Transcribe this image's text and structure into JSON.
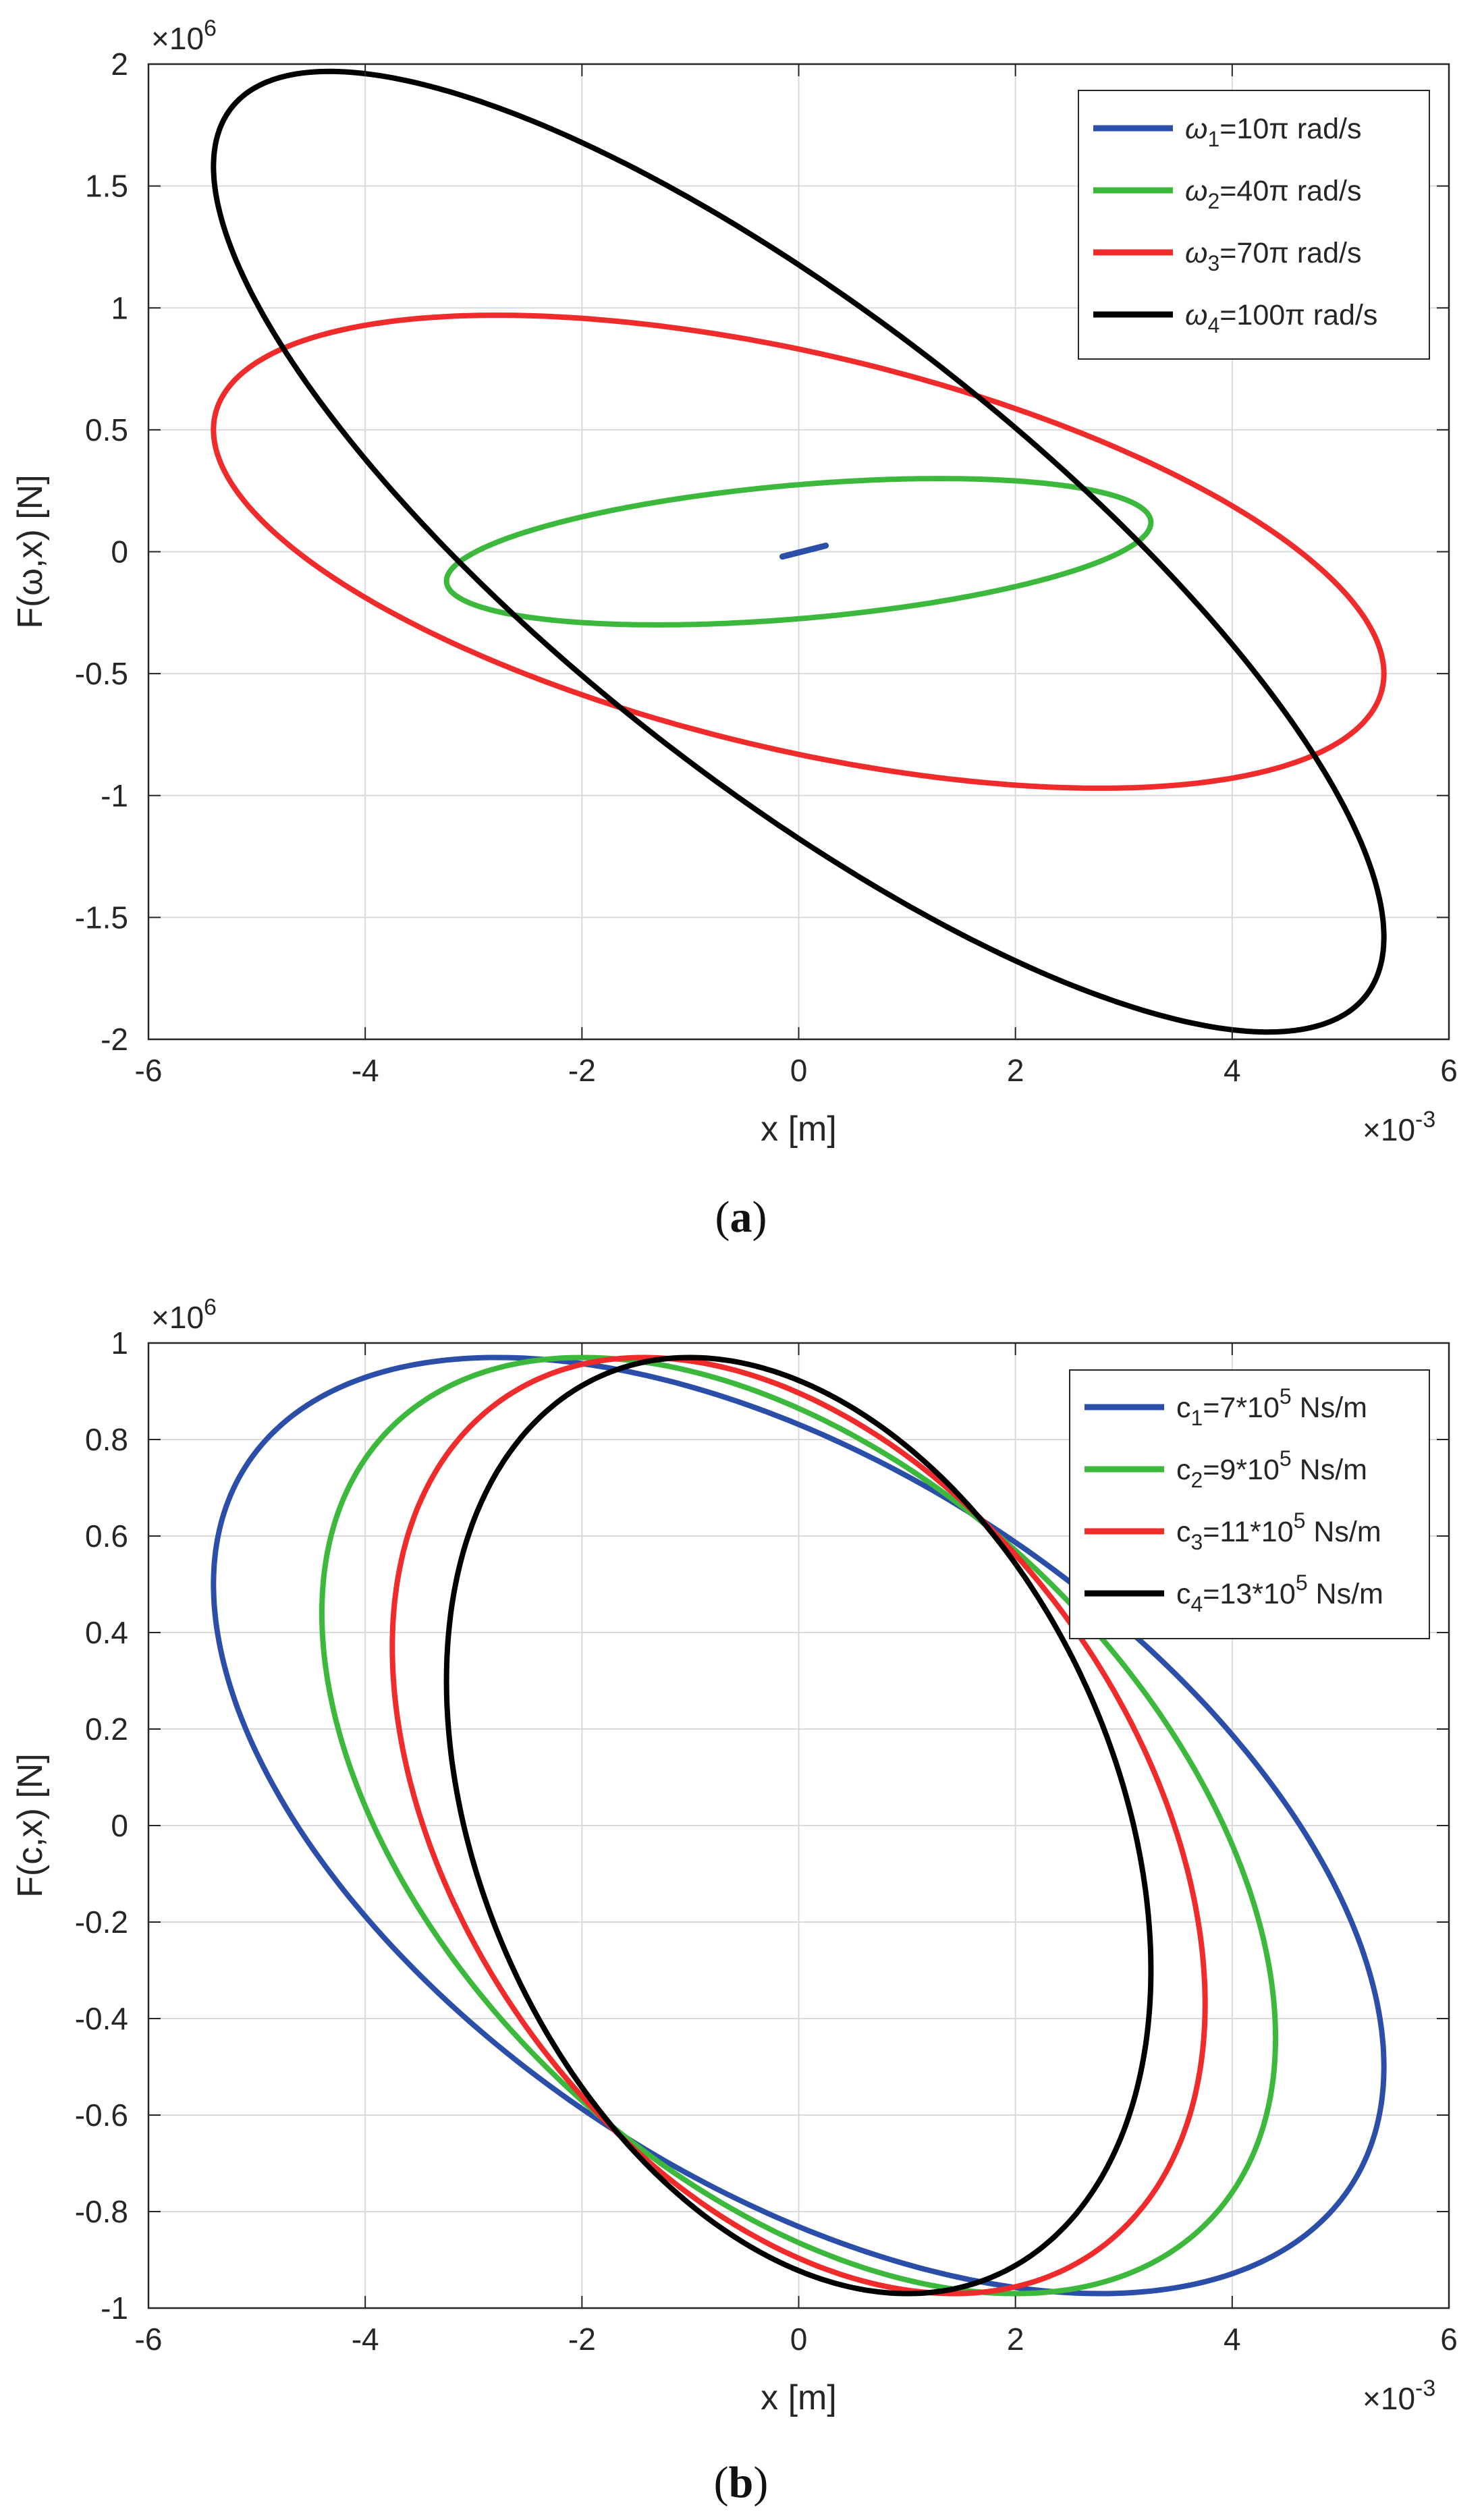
{
  "chart_data": [
    {
      "type": "line",
      "caption": {
        "open": "(",
        "letter": "a",
        "close": ")"
      },
      "xlabel": "x [m]",
      "ylabel": "F(ω,x) [N]",
      "x_multiplier": "×10-3",
      "x_multiplier_parts": {
        "base": "×10",
        "exp": "-3"
      },
      "y_multiplier": "×10^6",
      "y_multiplier_parts": {
        "base": "×10",
        "exp": "6"
      },
      "xlim": [
        -6,
        6
      ],
      "ylim": [
        -2,
        2
      ],
      "xticks": [
        -6,
        -4,
        -2,
        0,
        2,
        4,
        6
      ],
      "xtick_labels": [
        "-6",
        "-4",
        "-2",
        "0",
        "2",
        "4",
        "6"
      ],
      "yticks": [
        -2,
        -1.5,
        -1,
        -0.5,
        0,
        0.5,
        1,
        1.5,
        2
      ],
      "ytick_labels": [
        "-2",
        "-1.5",
        "-1",
        "-0.5",
        "0",
        "0.5",
        "1",
        "1.5",
        "2"
      ],
      "grid": true,
      "legend_position": "top-right",
      "series": [
        {
          "name": "ω1=10π rad/s",
          "label": {
            "sym": "ω",
            "sub": "1",
            "rest": "=10π rad/s"
          },
          "color": "#2b4fa8",
          "shape": "segment",
          "x": [
            -0.15,
            0.25
          ],
          "y": [
            -0.02,
            0.025
          ]
        },
        {
          "name": "ω2=40π rad/s",
          "label": {
            "sym": "ω",
            "sub": "2",
            "rest": "=40π rad/s"
          },
          "color": "#3cb93c",
          "shape": "loop",
          "x_amp": 3.25,
          "y_amp": 0.3,
          "x_at_ymax": 1.2,
          "y_at_xmax": 0.12
        },
        {
          "name": "ω3=70π rad/s",
          "label": {
            "sym": "ω",
            "sub": "3",
            "rest": "=70π rad/s"
          },
          "color": "#ef2b2b",
          "shape": "loop",
          "x_amp": 5.4,
          "y_amp": 0.97,
          "x_at_ymax": -2.9,
          "y_at_xmax": -0.5
        },
        {
          "name": "ω4=100π rad/s",
          "label": {
            "sym": "ω",
            "sub": "4",
            "rest": "=100π rad/s"
          },
          "color": "#000000",
          "shape": "loop",
          "x_amp": 5.4,
          "y_amp": 1.97,
          "x_at_ymax": -4.3,
          "y_at_xmax": -1.58
        }
      ]
    },
    {
      "type": "line",
      "caption": {
        "open": "(",
        "letter": "b",
        "close": ")"
      },
      "xlabel": "x [m]",
      "ylabel": "F(c,x) [N]",
      "x_multiplier": "×10-3",
      "x_multiplier_parts": {
        "base": "×10",
        "exp": "-3"
      },
      "y_multiplier": "×10^6",
      "y_multiplier_parts": {
        "base": "×10",
        "exp": "6"
      },
      "xlim": [
        -6,
        6
      ],
      "ylim": [
        -1,
        1
      ],
      "xticks": [
        -6,
        -4,
        -2,
        0,
        2,
        4,
        6
      ],
      "xtick_labels": [
        "-6",
        "-4",
        "-2",
        "0",
        "2",
        "4",
        "6"
      ],
      "yticks": [
        -1,
        -0.8,
        -0.6,
        -0.4,
        -0.2,
        0,
        0.2,
        0.4,
        0.6,
        0.8,
        1
      ],
      "ytick_labels": [
        "-1",
        "-0.8",
        "-0.6",
        "-0.4",
        "-0.2",
        "0",
        "0.2",
        "0.4",
        "0.6",
        "0.8",
        "1"
      ],
      "grid": true,
      "legend_position": "top-right",
      "series": [
        {
          "name": "c1=7*10^5 Ns/m",
          "label": {
            "sym": "c",
            "sub": "1",
            "rest": "=7*10",
            "sup": "5",
            "unit": " Ns/m"
          },
          "color": "#2b4fa8",
          "shape": "loop",
          "x_amp": 5.4,
          "y_amp": 0.97,
          "x_at_ymax": -2.9,
          "y_at_xmax": -0.5
        },
        {
          "name": "c2=9*10^5 Ns/m",
          "label": {
            "sym": "c",
            "sub": "2",
            "rest": "=9*10",
            "sup": "5",
            "unit": " Ns/m"
          },
          "color": "#3cb93c",
          "shape": "loop",
          "x_amp": 4.4,
          "y_amp": 0.97,
          "x_at_ymax": -2.05,
          "y_at_xmax": -0.44
        },
        {
          "name": "c3=11*10^5 Ns/m",
          "label": {
            "sym": "c",
            "sub": "3",
            "rest": "=11*10",
            "sup": "5",
            "unit": " Ns/m"
          },
          "color": "#ef2b2b",
          "shape": "loop",
          "x_amp": 3.75,
          "y_amp": 0.97,
          "x_at_ymax": -1.45,
          "y_at_xmax": -0.37
        },
        {
          "name": "c4=13*10^5 Ns/m",
          "label": {
            "sym": "c",
            "sub": "4",
            "rest": "=13*10",
            "sup": "5",
            "unit": " Ns/m"
          },
          "color": "#000000",
          "shape": "loop",
          "x_amp": 3.25,
          "y_amp": 0.97,
          "x_at_ymax": -1.0,
          "y_at_xmax": -0.3
        }
      ]
    }
  ]
}
